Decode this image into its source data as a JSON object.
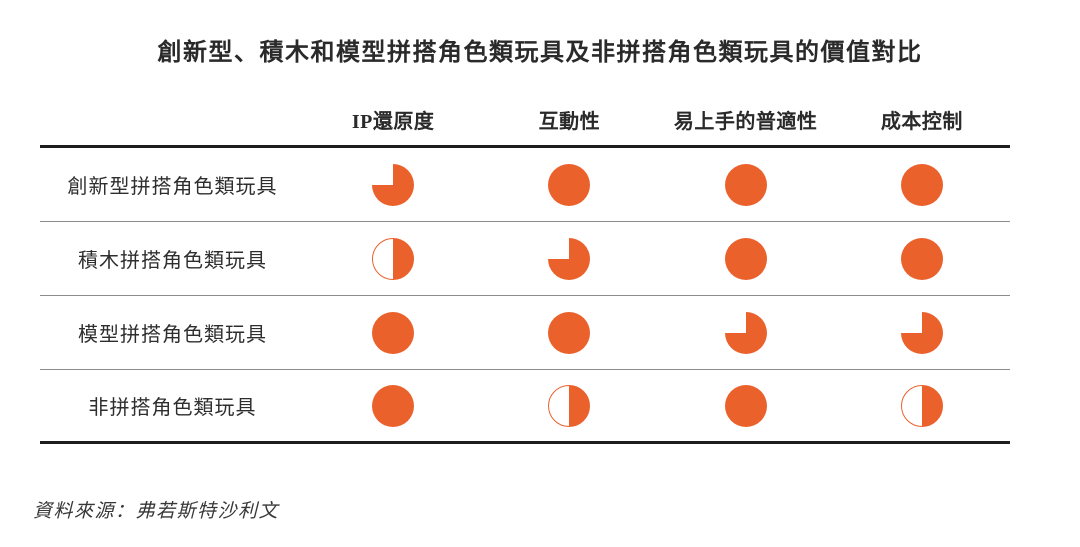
{
  "title": "創新型、積木和模型拼搭角色類玩具及非拼搭角色類玩具的價值對比",
  "source": "資料來源：弗若斯特沙利文",
  "colors": {
    "accent": "#EB612C",
    "thick_rule": "#1E1E1E",
    "thin_rule": "#8C8C8C"
  },
  "chart_data": {
    "type": "table",
    "title": "創新型、積木和模型拼搭角色類玩具及非拼搭角色類玩具的價值對比",
    "columns": [
      "IP還原度",
      "互動性",
      "易上手的普適性",
      "成本控制"
    ],
    "rows": [
      {
        "label": "創新型拼搭角色類玩具",
        "values": [
          0.75,
          1,
          1,
          1
        ]
      },
      {
        "label": "積木拼搭角色類玩具",
        "values": [
          0.5,
          0.75,
          1,
          1
        ]
      },
      {
        "label": "模型拼搭角色類玩具",
        "values": [
          1,
          1,
          0.75,
          0.75
        ]
      },
      {
        "label": "非拼搭角色類玩具",
        "values": [
          1,
          0.5,
          1,
          0.5
        ]
      }
    ],
    "value_encoding": "harvey-ball fraction filled: 1 = full circle, 0.75 = three-quarters filled (top-left quarter empty), 0.5 = right half filled",
    "legend_position": "none",
    "grid": "horizontal rules only"
  }
}
